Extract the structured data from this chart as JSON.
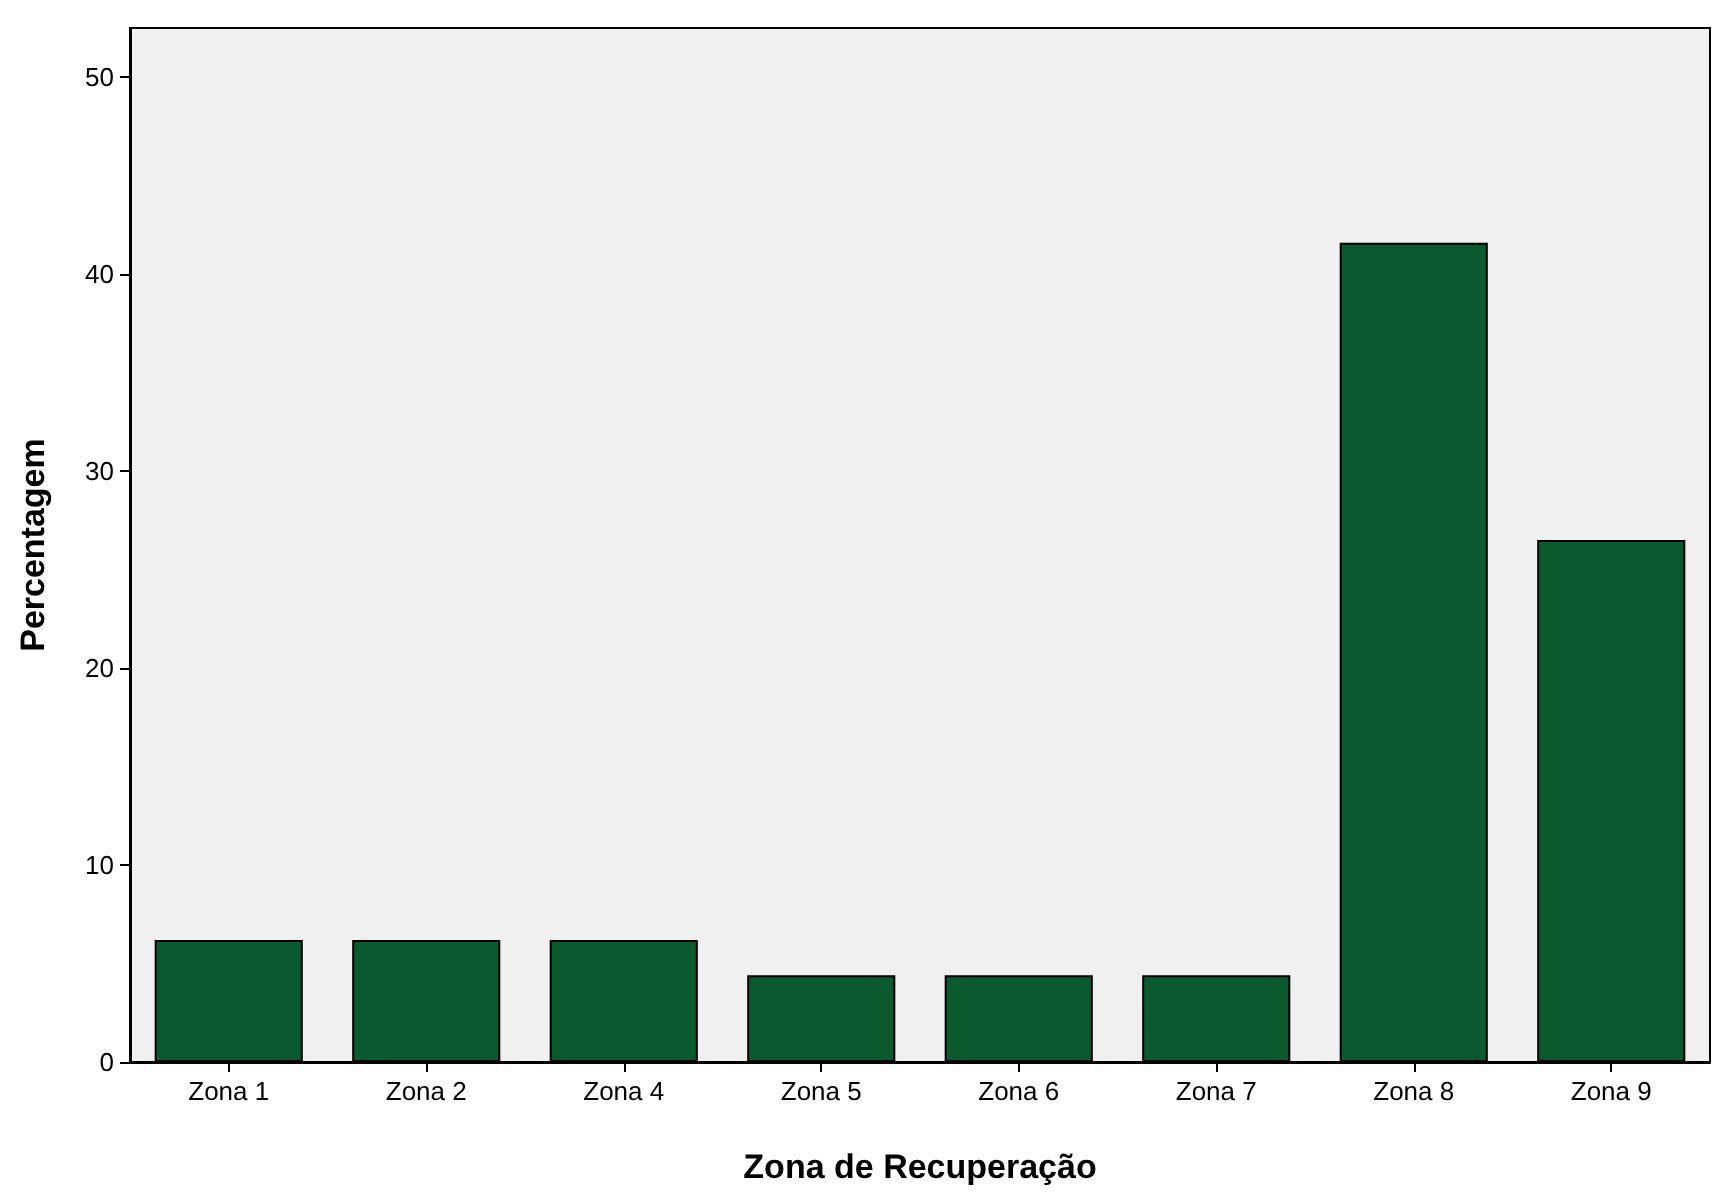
{
  "chart_data": {
    "type": "bar",
    "xlabel": "Zona de Recuperação",
    "ylabel": "Percentagem",
    "categories": [
      "Zona 1",
      "Zona 2",
      "Zona 4",
      "Zona 5",
      "Zona 6",
      "Zona 7",
      "Zona 8",
      "Zona 9"
    ],
    "values": [
      6.2,
      6.2,
      6.2,
      4.4,
      4.4,
      4.4,
      41.6,
      26.5
    ],
    "color": "#0b5a2f",
    "ylim": [
      0,
      52.5
    ],
    "yticks": [
      0,
      10,
      20,
      30,
      40,
      50
    ],
    "grid": false
  }
}
